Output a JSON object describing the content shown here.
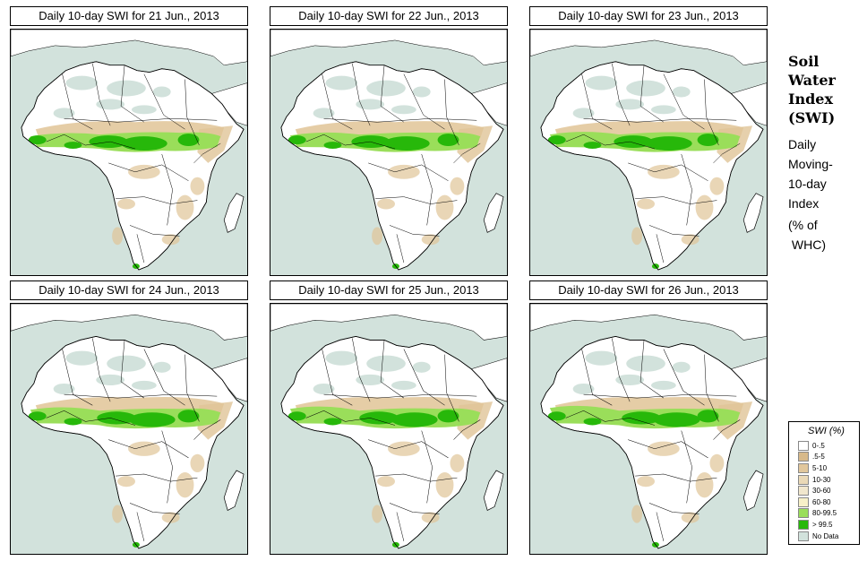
{
  "panels": [
    {
      "title": "Daily 10-day SWI for  21 Jun., 2013"
    },
    {
      "title": "Daily 10-day SWI for  22 Jun., 2013"
    },
    {
      "title": "Daily 10-day SWI for  23 Jun., 2013"
    },
    {
      "title": "Daily 10-day SWI for  24 Jun., 2013"
    },
    {
      "title": "Daily 10-day SWI for  25 Jun., 2013"
    },
    {
      "title": "Daily 10-day SWI for  26 Jun., 2013"
    }
  ],
  "side": {
    "title_lines": [
      "Soil",
      "Water",
      "Index",
      "(SWI)"
    ],
    "desc_lines": [
      "Daily",
      "Moving-",
      "10-day",
      "Index"
    ],
    "units_lines": [
      "(% of",
      " WHC)"
    ]
  },
  "legend": {
    "title": "SWI (%)",
    "items": [
      {
        "label": "0-.5",
        "color": "#ffffff"
      },
      {
        "label": ".5-5",
        "color": "#d7b98a"
      },
      {
        "label": "5-10",
        "color": "#e1c79c"
      },
      {
        "label": "10-30",
        "color": "#ead9b7"
      },
      {
        "label": "30-60",
        "color": "#f1e7cd"
      },
      {
        "label": "60-80",
        "color": "#f7f0c8"
      },
      {
        "label": "80-99.5",
        "color": "#9ade5a"
      },
      {
        "label": "> 99.5",
        "color": "#27b80a"
      },
      {
        "label": "No Data",
        "color": "#d2e2dc"
      }
    ]
  },
  "colors": {
    "ocean": "#d2e2dc",
    "land": "#ffffff",
    "dry": "#e0c497",
    "moist": "#9ade5a",
    "wet": "#27b80a",
    "nodata": "#d2e2dc"
  }
}
